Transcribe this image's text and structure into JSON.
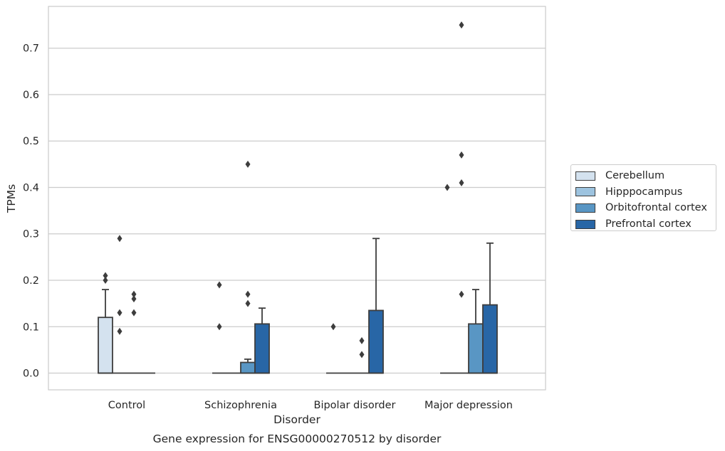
{
  "chart_data": {
    "type": "box",
    "title": "Gene expression for ENSG00000270512 by disorder",
    "xlabel": "Disorder",
    "ylabel": "TPMs",
    "ylim": [
      -0.036,
      0.79
    ],
    "yticks": [
      0.0,
      0.1,
      0.2,
      0.3,
      0.4,
      0.5,
      0.6,
      0.7
    ],
    "ytick_labels": [
      "0.0",
      "0.1",
      "0.2",
      "0.3",
      "0.4",
      "0.5",
      "0.6",
      "0.7"
    ],
    "grid": true,
    "legend_position": "right",
    "categories": [
      "Control",
      "Schizophrenia",
      "Bipolar disorder",
      "Major depression"
    ],
    "series": [
      {
        "name": "Cerebellum",
        "color": "#d4e2ef",
        "boxes": [
          {
            "q1": 0.0,
            "median": 0.0,
            "q3": 0.12,
            "whisker_low": 0.0,
            "whisker_high": 0.18,
            "outliers": [
              0.2,
              0.21
            ]
          },
          {
            "q1": 0.0,
            "median": 0.0,
            "q3": 0.0,
            "whisker_low": 0.0,
            "whisker_high": 0.0,
            "outliers": [
              0.1,
              0.19
            ]
          },
          {
            "q1": 0.0,
            "median": 0.0,
            "q3": 0.0,
            "whisker_low": 0.0,
            "whisker_high": 0.0,
            "outliers": [
              0.1
            ]
          },
          {
            "q1": 0.0,
            "median": 0.0,
            "q3": 0.0,
            "whisker_low": 0.0,
            "whisker_high": 0.0,
            "outliers": [
              0.4
            ]
          }
        ]
      },
      {
        "name": "Hipppocampus",
        "color": "#9dc3df",
        "boxes": [
          {
            "q1": 0.0,
            "median": 0.0,
            "q3": 0.0,
            "whisker_low": 0.0,
            "whisker_high": 0.0,
            "outliers": [
              0.09,
              0.13,
              0.29
            ]
          },
          {
            "q1": 0.0,
            "median": 0.0,
            "q3": 0.0,
            "whisker_low": 0.0,
            "whisker_high": 0.0,
            "outliers": []
          },
          {
            "q1": 0.0,
            "median": 0.0,
            "q3": 0.0,
            "whisker_low": 0.0,
            "whisker_high": 0.0,
            "outliers": []
          },
          {
            "q1": 0.0,
            "median": 0.0,
            "q3": 0.0,
            "whisker_low": 0.0,
            "whisker_high": 0.0,
            "outliers": [
              0.17,
              0.41,
              0.47,
              0.75
            ]
          }
        ]
      },
      {
        "name": "Orbitofrontal cortex",
        "color": "#5996c4",
        "boxes": [
          {
            "q1": 0.0,
            "median": 0.0,
            "q3": 0.0,
            "whisker_low": 0.0,
            "whisker_high": 0.0,
            "outliers": [
              0.13,
              0.16,
              0.17
            ]
          },
          {
            "q1": 0.0,
            "median": 0.0,
            "q3": 0.023,
            "whisker_low": 0.0,
            "whisker_high": 0.03,
            "outliers": [
              0.15,
              0.17,
              0.45
            ]
          },
          {
            "q1": 0.0,
            "median": 0.0,
            "q3": 0.0,
            "whisker_low": 0.0,
            "whisker_high": 0.0,
            "outliers": [
              0.04,
              0.07
            ]
          },
          {
            "q1": 0.0,
            "median": 0.0,
            "q3": 0.106,
            "whisker_low": 0.0,
            "whisker_high": 0.18,
            "outliers": []
          }
        ]
      },
      {
        "name": "Prefrontal cortex",
        "color": "#2866a6",
        "boxes": [
          {
            "q1": 0.0,
            "median": 0.0,
            "q3": 0.0,
            "whisker_low": 0.0,
            "whisker_high": 0.0,
            "outliers": []
          },
          {
            "q1": 0.0,
            "median": 0.0,
            "q3": 0.106,
            "whisker_low": 0.0,
            "whisker_high": 0.14,
            "outliers": []
          },
          {
            "q1": 0.0,
            "median": 0.0,
            "q3": 0.135,
            "whisker_low": 0.0,
            "whisker_high": 0.29,
            "outliers": []
          },
          {
            "q1": 0.0,
            "median": 0.0,
            "q3": 0.147,
            "whisker_low": 0.0,
            "whisker_high": 0.28,
            "outliers": []
          }
        ]
      }
    ]
  }
}
